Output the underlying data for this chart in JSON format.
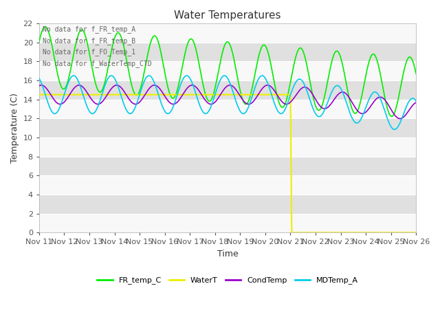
{
  "title": "Water Temperatures",
  "xlabel": "Time",
  "ylabel": "Temperature (C)",
  "ylim": [
    0,
    22
  ],
  "yticks": [
    0,
    2,
    4,
    6,
    8,
    10,
    12,
    14,
    16,
    18,
    20,
    22
  ],
  "annotations": [
    "No data for f_FR_temp_A",
    "No data for f_FR_temp_B",
    "No data for f_FO_Temp_1",
    "No data for f_WaterTemp_CTD"
  ],
  "legend_entries": [
    "FR_temp_C",
    "WaterT",
    "CondTemp",
    "MDTemp_A"
  ],
  "legend_colors": [
    "#00ee00",
    "#eeee00",
    "#9900cc",
    "#00ccee"
  ],
  "background_color": "#ffffff",
  "plot_bg_color": "#e8e8e8",
  "grid_color": "#ffffff",
  "date_labels": [
    "Nov 11",
    "Nov 12",
    "Nov 13",
    "Nov 14",
    "Nov 15",
    "Nov 16",
    "Nov 17",
    "Nov 18",
    "Nov 19",
    "Nov 20",
    "Nov 21",
    "Nov 22",
    "Nov 23",
    "Nov 24",
    "Nov 25",
    "Nov 26"
  ]
}
